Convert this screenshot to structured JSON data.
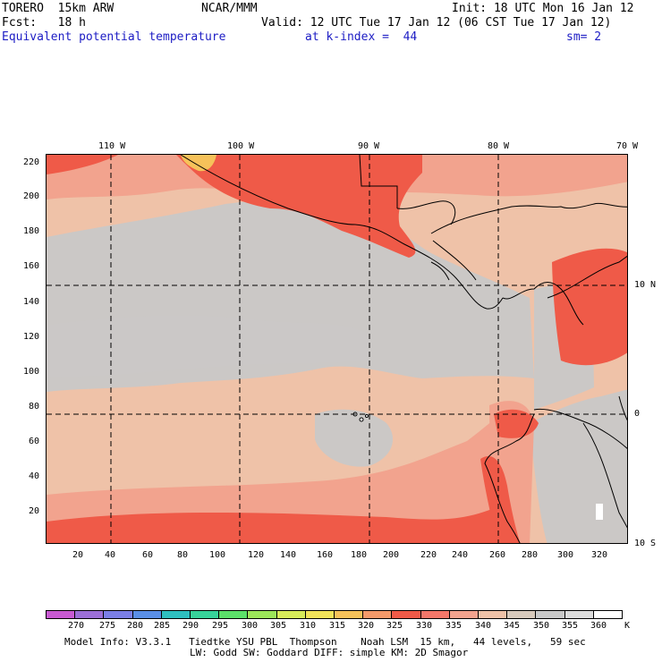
{
  "header": {
    "line1_left": "TORERO  15km ARW",
    "line1_center": "NCAR/MMM",
    "line1_right": "Init: 18 UTC Mon 16 Jan 12",
    "line2_left": "Fcst:   18 h",
    "line2_right": "Valid: 12 UTC Tue 17 Jan 12 (06 CST Tue 17 Jan 12)",
    "line3_left": "Equivalent potential temperature",
    "line3_center": "at k-index =  44",
    "line3_right": "sm= 2"
  },
  "axes": {
    "top_longitude_labels": [
      "110 W",
      "100 W",
      "90 W",
      "80 W",
      "70 W"
    ],
    "right_latitude_labels": [
      "10 N",
      "0",
      "10 S"
    ],
    "y_grid_labels": [
      "220",
      "200",
      "180",
      "160",
      "140",
      "120",
      "100",
      "80",
      "60",
      "40",
      "20"
    ],
    "x_grid_labels": [
      "20",
      "40",
      "60",
      "80",
      "100",
      "120",
      "140",
      "160",
      "180",
      "200",
      "220",
      "240",
      "260",
      "280",
      "300",
      "320"
    ]
  },
  "colorbar": {
    "labels": [
      "270",
      "275",
      "280",
      "285",
      "290",
      "295",
      "300",
      "305",
      "310",
      "315",
      "320",
      "325",
      "330",
      "335",
      "340",
      "345",
      "350",
      "355",
      "360"
    ],
    "unit": "K",
    "colors": [
      "#c85ad2",
      "#9c6fd6",
      "#7b7fe6",
      "#5a8fe6",
      "#2fbfbf",
      "#38d39a",
      "#5ce06a",
      "#9ce55a",
      "#d8ec5a",
      "#f2e45a",
      "#f6c25a",
      "#f49a6a",
      "#ef5a48",
      "#f4776a",
      "#f2a38e",
      "#efc2a8",
      "#d8cabc",
      "#c9c9c9",
      "#dcdcdc",
      "#ffffff"
    ]
  },
  "footer": {
    "line1": "Model Info: V3.3.1   Tiedtke YSU PBL  Thompson    Noah LSM  15 km,   44 levels,   59 sec",
    "line2": "LW: Godd SW: Goddard DIFF: simple KM: 2D Smagor"
  },
  "map_colors": {
    "ocean_tan": "#efc2a8",
    "ocean_gray": "#cbc8c6",
    "warm_salmon": "#f2a38e",
    "red": "#ef5a48",
    "yellow": "#f6c25a"
  }
}
